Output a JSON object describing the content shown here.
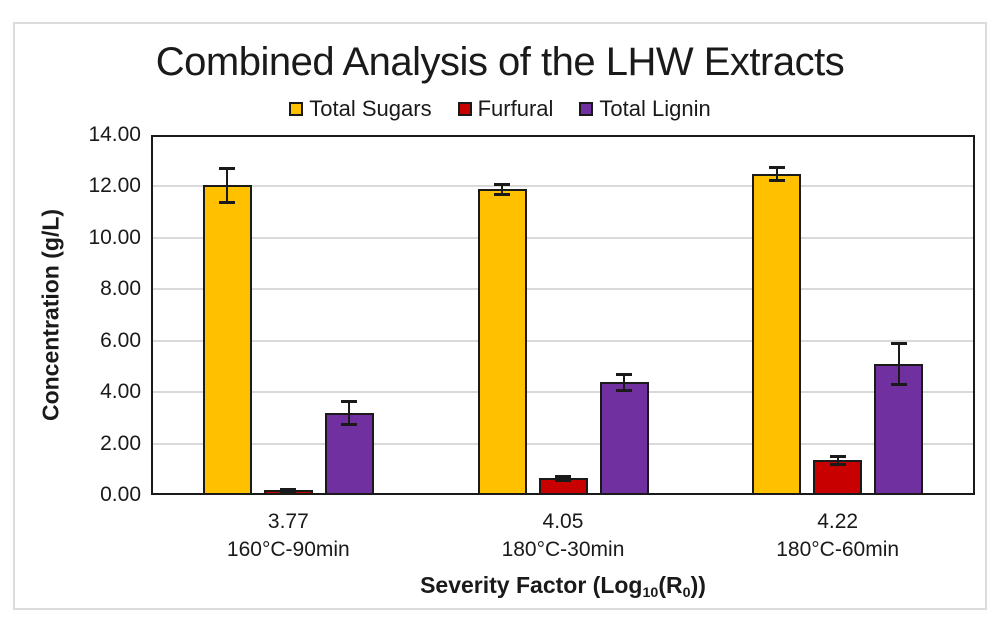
{
  "chart_data": {
    "type": "bar",
    "title": "Combined Analysis of the LHW Extracts",
    "ylabel": "Concentration (g/L)",
    "xlabel_parts": {
      "prefix": "Severity Factor (Log",
      "sub1": "10",
      "mid": "(R",
      "sub2": "0",
      "suffix": "))"
    },
    "ylim": [
      0,
      14
    ],
    "ytick_step": 2,
    "ytick_labels": [
      "0.00",
      "2.00",
      "4.00",
      "6.00",
      "8.00",
      "10.00",
      "12.00",
      "14.00"
    ],
    "grid": true,
    "legend_position": "top",
    "categories": [
      {
        "severity": "3.77",
        "condition": "160°C-90min"
      },
      {
        "severity": "4.05",
        "condition": "180°C-30min"
      },
      {
        "severity": "4.22",
        "condition": "180°C-60min"
      }
    ],
    "series": [
      {
        "name": "Total Sugars",
        "color": "#FFC000",
        "values": [
          12.05,
          11.9,
          12.5
        ],
        "errors": [
          0.65,
          0.2,
          0.25
        ]
      },
      {
        "name": "Furfural",
        "color": "#C80000",
        "values": [
          0.2,
          0.65,
          1.35
        ],
        "errors": [
          0.05,
          0.08,
          0.15
        ]
      },
      {
        "name": "Total Lignin",
        "color": "#7030A0",
        "values": [
          3.2,
          4.4,
          5.1
        ],
        "errors": [
          0.45,
          0.3,
          0.8
        ]
      }
    ]
  }
}
